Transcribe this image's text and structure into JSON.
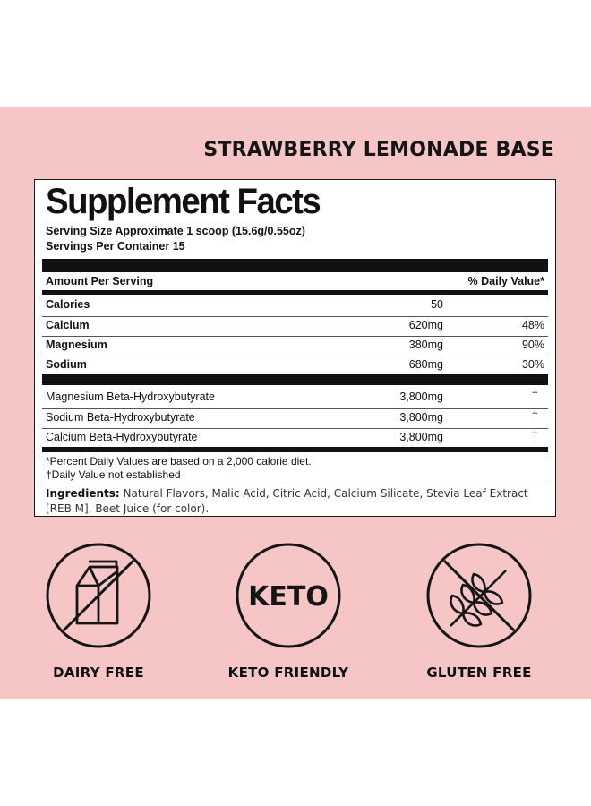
{
  "product_name": "STRAWBERRY LEMONADE BASE",
  "facts": {
    "title": "Supplement Facts",
    "serving_size": "Serving Size Approximate 1 scoop (15.6g/0.55oz)",
    "servings_per_container": "Servings Per Container 15",
    "amount_header": "Amount Per Serving",
    "dv_header": "% Daily Value*",
    "main_rows": [
      {
        "name": "Calories",
        "amount": "50",
        "dv": ""
      },
      {
        "name": "Calcium",
        "amount": "620mg",
        "dv": "48%"
      },
      {
        "name": "Magnesium",
        "amount": "380mg",
        "dv": "90%"
      },
      {
        "name": "Sodium",
        "amount": "680mg",
        "dv": "30%"
      }
    ],
    "other_rows": [
      {
        "name": "Magnesium Beta-Hydroxybutyrate",
        "amount": "3,800mg",
        "dv": "†"
      },
      {
        "name": "Sodium Beta-Hydroxybutyrate",
        "amount": "3,800mg",
        "dv": "†"
      },
      {
        "name": "Calcium Beta-Hydroxybutyrate",
        "amount": "3,800mg",
        "dv": "†"
      }
    ],
    "footnote_1": "*Percent Daily Values are based on a 2,000 calorie diet.",
    "footnote_2": "†Daily Value not established",
    "ingredients_label": "Ingredients:",
    "ingredients_text": "Natural Flavors, Malic Acid, Citric Acid, Calcium Silicate, Stevia Leaf Extract [REB M], Beet Juice (for color)."
  },
  "badges": [
    {
      "label": "DAIRY FREE",
      "icon": "milk-carton-crossed-icon"
    },
    {
      "label": "KETO FRIENDLY",
      "icon": "keto-circle-icon",
      "icon_text": "KETO"
    },
    {
      "label": "GLUTEN FREE",
      "icon": "wheat-crossed-icon"
    }
  ],
  "colors": {
    "background_band": "#f6c5c6",
    "ink": "#111111"
  }
}
